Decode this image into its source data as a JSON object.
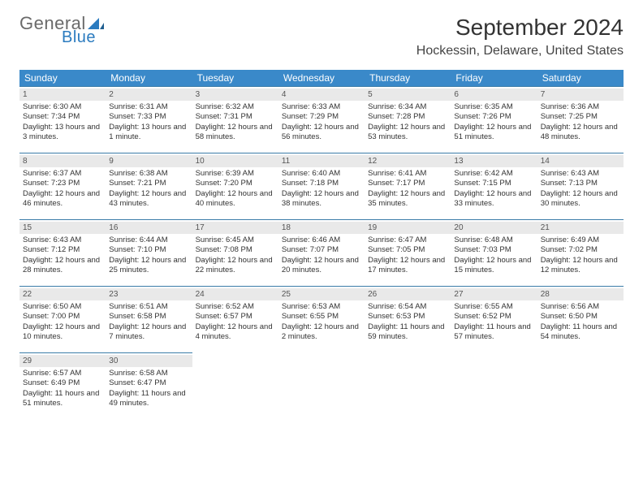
{
  "logo": {
    "general": "General",
    "blue": "Blue"
  },
  "title": "September 2024",
  "location": "Hockessin, Delaware, United States",
  "colors": {
    "header_bg": "#3a89c9",
    "header_text": "#ffffff",
    "row_border": "#3a7ca8",
    "daynum_bg": "#e9e9e9",
    "logo_gray": "#6a6a6a",
    "logo_blue": "#2b7bbf"
  },
  "weekdays": [
    "Sunday",
    "Monday",
    "Tuesday",
    "Wednesday",
    "Thursday",
    "Friday",
    "Saturday"
  ],
  "grid": [
    [
      {
        "n": "1",
        "sr": "Sunrise: 6:30 AM",
        "ss": "Sunset: 7:34 PM",
        "dl": "Daylight: 13 hours and 3 minutes."
      },
      {
        "n": "2",
        "sr": "Sunrise: 6:31 AM",
        "ss": "Sunset: 7:33 PM",
        "dl": "Daylight: 13 hours and 1 minute."
      },
      {
        "n": "3",
        "sr": "Sunrise: 6:32 AM",
        "ss": "Sunset: 7:31 PM",
        "dl": "Daylight: 12 hours and 58 minutes."
      },
      {
        "n": "4",
        "sr": "Sunrise: 6:33 AM",
        "ss": "Sunset: 7:29 PM",
        "dl": "Daylight: 12 hours and 56 minutes."
      },
      {
        "n": "5",
        "sr": "Sunrise: 6:34 AM",
        "ss": "Sunset: 7:28 PM",
        "dl": "Daylight: 12 hours and 53 minutes."
      },
      {
        "n": "6",
        "sr": "Sunrise: 6:35 AM",
        "ss": "Sunset: 7:26 PM",
        "dl": "Daylight: 12 hours and 51 minutes."
      },
      {
        "n": "7",
        "sr": "Sunrise: 6:36 AM",
        "ss": "Sunset: 7:25 PM",
        "dl": "Daylight: 12 hours and 48 minutes."
      }
    ],
    [
      {
        "n": "8",
        "sr": "Sunrise: 6:37 AM",
        "ss": "Sunset: 7:23 PM",
        "dl": "Daylight: 12 hours and 46 minutes."
      },
      {
        "n": "9",
        "sr": "Sunrise: 6:38 AM",
        "ss": "Sunset: 7:21 PM",
        "dl": "Daylight: 12 hours and 43 minutes."
      },
      {
        "n": "10",
        "sr": "Sunrise: 6:39 AM",
        "ss": "Sunset: 7:20 PM",
        "dl": "Daylight: 12 hours and 40 minutes."
      },
      {
        "n": "11",
        "sr": "Sunrise: 6:40 AM",
        "ss": "Sunset: 7:18 PM",
        "dl": "Daylight: 12 hours and 38 minutes."
      },
      {
        "n": "12",
        "sr": "Sunrise: 6:41 AM",
        "ss": "Sunset: 7:17 PM",
        "dl": "Daylight: 12 hours and 35 minutes."
      },
      {
        "n": "13",
        "sr": "Sunrise: 6:42 AM",
        "ss": "Sunset: 7:15 PM",
        "dl": "Daylight: 12 hours and 33 minutes."
      },
      {
        "n": "14",
        "sr": "Sunrise: 6:43 AM",
        "ss": "Sunset: 7:13 PM",
        "dl": "Daylight: 12 hours and 30 minutes."
      }
    ],
    [
      {
        "n": "15",
        "sr": "Sunrise: 6:43 AM",
        "ss": "Sunset: 7:12 PM",
        "dl": "Daylight: 12 hours and 28 minutes."
      },
      {
        "n": "16",
        "sr": "Sunrise: 6:44 AM",
        "ss": "Sunset: 7:10 PM",
        "dl": "Daylight: 12 hours and 25 minutes."
      },
      {
        "n": "17",
        "sr": "Sunrise: 6:45 AM",
        "ss": "Sunset: 7:08 PM",
        "dl": "Daylight: 12 hours and 22 minutes."
      },
      {
        "n": "18",
        "sr": "Sunrise: 6:46 AM",
        "ss": "Sunset: 7:07 PM",
        "dl": "Daylight: 12 hours and 20 minutes."
      },
      {
        "n": "19",
        "sr": "Sunrise: 6:47 AM",
        "ss": "Sunset: 7:05 PM",
        "dl": "Daylight: 12 hours and 17 minutes."
      },
      {
        "n": "20",
        "sr": "Sunrise: 6:48 AM",
        "ss": "Sunset: 7:03 PM",
        "dl": "Daylight: 12 hours and 15 minutes."
      },
      {
        "n": "21",
        "sr": "Sunrise: 6:49 AM",
        "ss": "Sunset: 7:02 PM",
        "dl": "Daylight: 12 hours and 12 minutes."
      }
    ],
    [
      {
        "n": "22",
        "sr": "Sunrise: 6:50 AM",
        "ss": "Sunset: 7:00 PM",
        "dl": "Daylight: 12 hours and 10 minutes."
      },
      {
        "n": "23",
        "sr": "Sunrise: 6:51 AM",
        "ss": "Sunset: 6:58 PM",
        "dl": "Daylight: 12 hours and 7 minutes."
      },
      {
        "n": "24",
        "sr": "Sunrise: 6:52 AM",
        "ss": "Sunset: 6:57 PM",
        "dl": "Daylight: 12 hours and 4 minutes."
      },
      {
        "n": "25",
        "sr": "Sunrise: 6:53 AM",
        "ss": "Sunset: 6:55 PM",
        "dl": "Daylight: 12 hours and 2 minutes."
      },
      {
        "n": "26",
        "sr": "Sunrise: 6:54 AM",
        "ss": "Sunset: 6:53 PM",
        "dl": "Daylight: 11 hours and 59 minutes."
      },
      {
        "n": "27",
        "sr": "Sunrise: 6:55 AM",
        "ss": "Sunset: 6:52 PM",
        "dl": "Daylight: 11 hours and 57 minutes."
      },
      {
        "n": "28",
        "sr": "Sunrise: 6:56 AM",
        "ss": "Sunset: 6:50 PM",
        "dl": "Daylight: 11 hours and 54 minutes."
      }
    ],
    [
      {
        "n": "29",
        "sr": "Sunrise: 6:57 AM",
        "ss": "Sunset: 6:49 PM",
        "dl": "Daylight: 11 hours and 51 minutes."
      },
      {
        "n": "30",
        "sr": "Sunrise: 6:58 AM",
        "ss": "Sunset: 6:47 PM",
        "dl": "Daylight: 11 hours and 49 minutes."
      },
      null,
      null,
      null,
      null,
      null
    ]
  ]
}
